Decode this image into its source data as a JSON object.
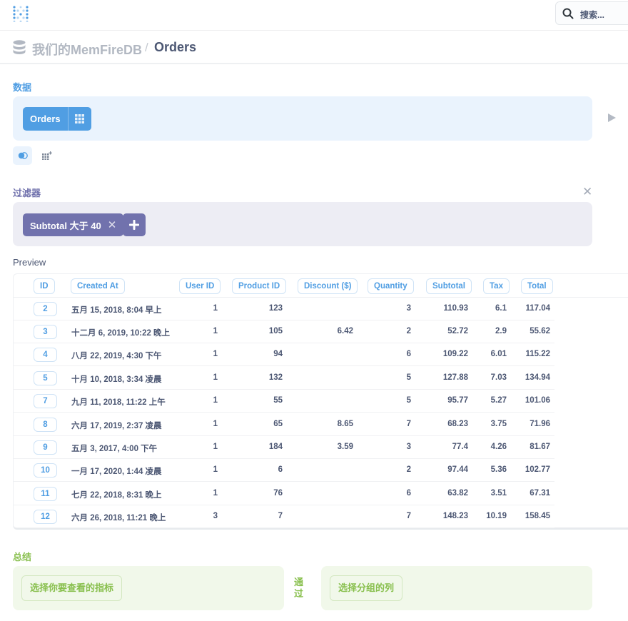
{
  "topbar": {
    "search_label": "搜索..."
  },
  "breadcrumb": {
    "database": "我们的MemFireDB",
    "separator": "/",
    "table": "Orders"
  },
  "data_section": {
    "label": "数据",
    "table_name": "Orders"
  },
  "filter_section": {
    "label": "过滤器",
    "filters": [
      {
        "label": "Subtotal 大于 40"
      }
    ]
  },
  "preview": {
    "label": "Preview",
    "columns": [
      "ID",
      "Created At",
      "User ID",
      "Product ID",
      "Discount ($)",
      "Quantity",
      "Subtotal",
      "Tax",
      "Total"
    ],
    "rows": [
      {
        "id": "2",
        "created_at": "五月 15, 2018, 8:04 早上",
        "user_id": "1",
        "product_id": "123",
        "discount": "",
        "quantity": "3",
        "subtotal": "110.93",
        "tax": "6.1",
        "total": "117.04"
      },
      {
        "id": "3",
        "created_at": "十二月 6, 2019, 10:22 晚上",
        "user_id": "1",
        "product_id": "105",
        "discount": "6.42",
        "quantity": "2",
        "subtotal": "52.72",
        "tax": "2.9",
        "total": "55.62"
      },
      {
        "id": "4",
        "created_at": "八月 22, 2019, 4:30 下午",
        "user_id": "1",
        "product_id": "94",
        "discount": "",
        "quantity": "6",
        "subtotal": "109.22",
        "tax": "6.01",
        "total": "115.22"
      },
      {
        "id": "5",
        "created_at": "十月 10, 2018, 3:34 凌晨",
        "user_id": "1",
        "product_id": "132",
        "discount": "",
        "quantity": "5",
        "subtotal": "127.88",
        "tax": "7.03",
        "total": "134.94"
      },
      {
        "id": "7",
        "created_at": "九月 11, 2018, 11:22 上午",
        "user_id": "1",
        "product_id": "55",
        "discount": "",
        "quantity": "5",
        "subtotal": "95.77",
        "tax": "5.27",
        "total": "101.06"
      },
      {
        "id": "8",
        "created_at": "六月 17, 2019, 2:37 凌晨",
        "user_id": "1",
        "product_id": "65",
        "discount": "8.65",
        "quantity": "7",
        "subtotal": "68.23",
        "tax": "3.75",
        "total": "71.96"
      },
      {
        "id": "9",
        "created_at": "五月 3, 2017, 4:00 下午",
        "user_id": "1",
        "product_id": "184",
        "discount": "3.59",
        "quantity": "3",
        "subtotal": "77.4",
        "tax": "4.26",
        "total": "81.67"
      },
      {
        "id": "10",
        "created_at": "一月 17, 2020, 1:44 凌晨",
        "user_id": "1",
        "product_id": "6",
        "discount": "",
        "quantity": "2",
        "subtotal": "97.44",
        "tax": "5.36",
        "total": "102.77"
      },
      {
        "id": "11",
        "created_at": "七月 22, 2018, 8:31 晚上",
        "user_id": "1",
        "product_id": "76",
        "discount": "",
        "quantity": "6",
        "subtotal": "63.82",
        "tax": "3.51",
        "total": "67.31"
      },
      {
        "id": "12",
        "created_at": "六月 26, 2018, 11:21 晚上",
        "user_id": "3",
        "product_id": "7",
        "discount": "",
        "quantity": "7",
        "subtotal": "148.23",
        "tax": "10.19",
        "total": "158.45"
      }
    ]
  },
  "summary_section": {
    "label": "总结",
    "metric_button": "选择你要查看的指标",
    "by_label": "通过",
    "group_button": "选择分组的列"
  },
  "colors": {
    "brand": "#509ee3",
    "filter": "#7172ad",
    "summary": "#88bf4d"
  }
}
